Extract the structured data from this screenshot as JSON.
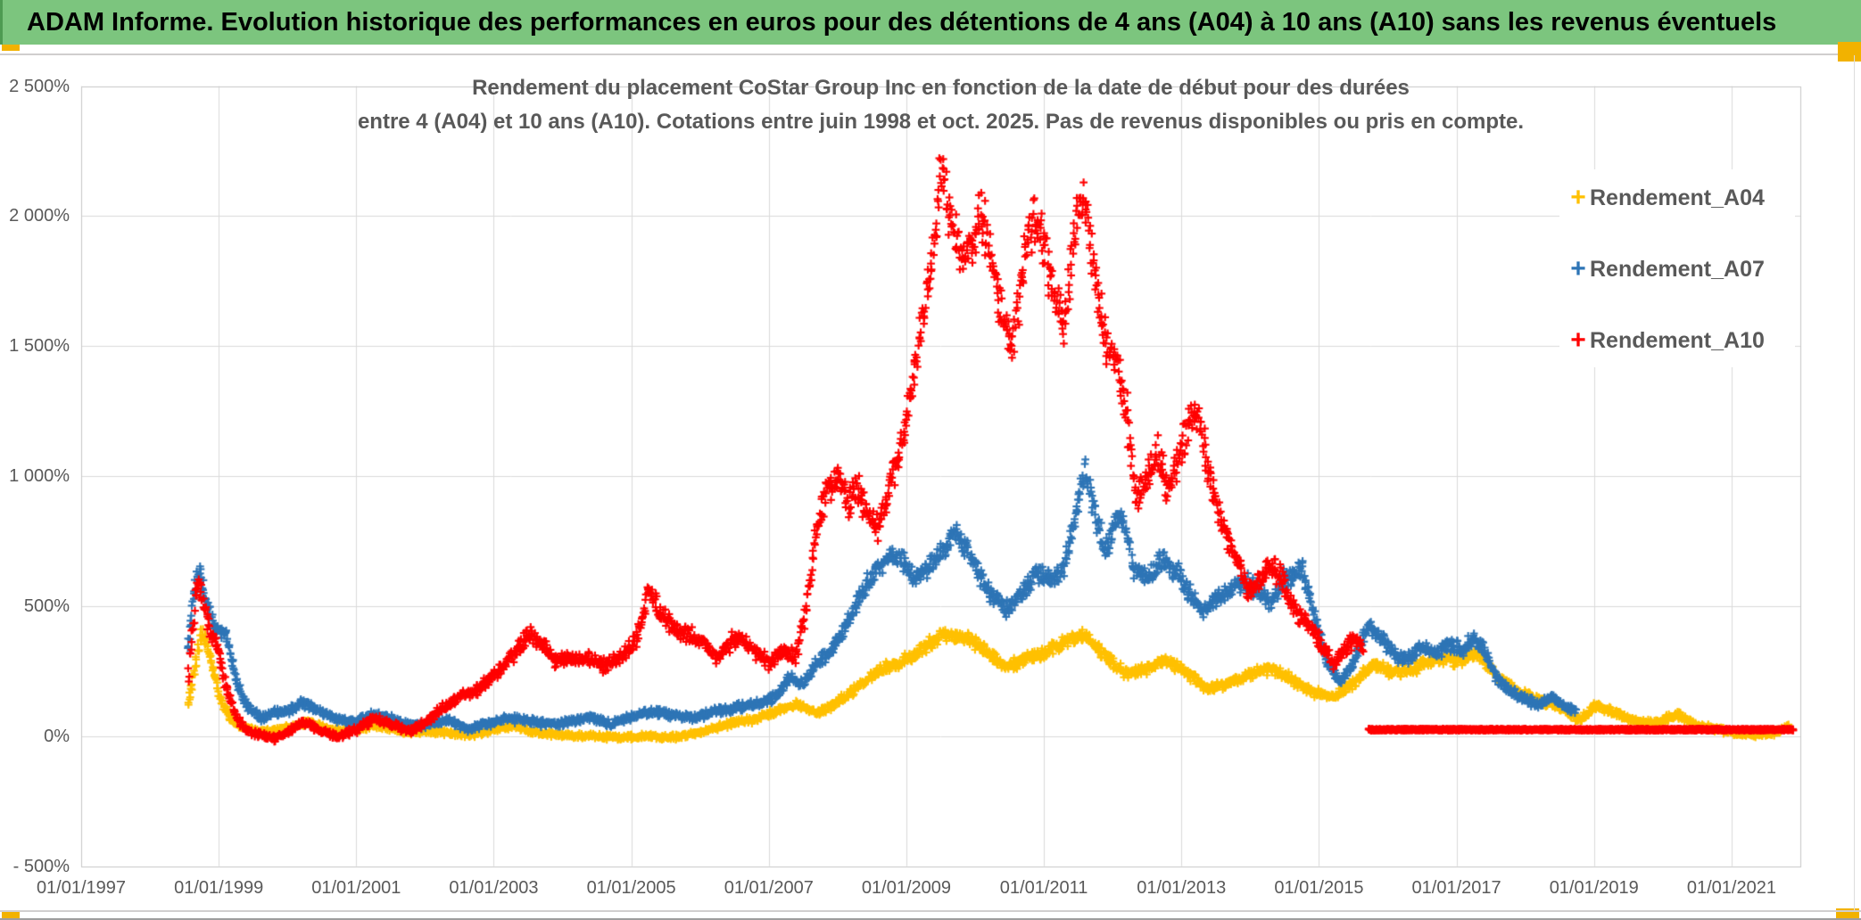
{
  "header": {
    "title": "ADAM Informe. Evolution historique des performances en euros pour des détentions de 4 ans (A04) à 10 ans (A10) sans les revenus éventuels"
  },
  "colors": {
    "header_green": "#7CC57E",
    "header_green_dark": "#4E9B52",
    "accent_yellow": "#F2B200",
    "separator_gray": "#D0CECE",
    "grid_gray": "#DADADA",
    "plot_border_gray": "#C6C6C6",
    "text_gray": "#595959"
  },
  "chart_data": {
    "type": "scatter",
    "title_line1": "Rendement du placement CoStar Group Inc en fonction de la date de début pour des durées",
    "title_line2": "entre 4 (A04) et 10 ans (A10). Cotations entre juin 1998 et oct. 2025. Pas de revenus disponibles ou pris en compte.",
    "legend_position": "right-inside",
    "grid": true,
    "marker": "plus",
    "x_axis": {
      "ticks": [
        "01/01/1997",
        "01/01/1999",
        "01/01/2001",
        "01/01/2003",
        "01/01/2005",
        "01/01/2007",
        "01/01/2009",
        "01/01/2011",
        "01/01/2013",
        "01/01/2015",
        "01/01/2017",
        "01/01/2019",
        "01/01/2021"
      ],
      "range_years": [
        1997,
        2022
      ]
    },
    "y_axis": {
      "ticks": [
        "2 500%",
        "2 000%",
        "1 500%",
        "1 000%",
        "500%",
        "0%",
        "- 500%"
      ],
      "range_pct": [
        -500,
        2500
      ],
      "step_pct": 500
    },
    "series": [
      {
        "name": "Rendement_A04",
        "color": "#FFC000",
        "jitter_base_pct": 12,
        "jitter_prop": 0.05,
        "anchors_year_pct": [
          [
            1998.55,
            120
          ],
          [
            1998.65,
            260
          ],
          [
            1998.75,
            400
          ],
          [
            1998.85,
            330
          ],
          [
            1998.95,
            230
          ],
          [
            1999.05,
            120
          ],
          [
            1999.2,
            60
          ],
          [
            1999.4,
            30
          ],
          [
            1999.6,
            15
          ],
          [
            1999.8,
            25
          ],
          [
            2000,
            30
          ],
          [
            2000.3,
            55
          ],
          [
            2000.6,
            25
          ],
          [
            2000.9,
            15
          ],
          [
            2001.2,
            40
          ],
          [
            2001.5,
            30
          ],
          [
            2001.8,
            15
          ],
          [
            2002.1,
            20
          ],
          [
            2002.4,
            10
          ],
          [
            2002.7,
            5
          ],
          [
            2003,
            25
          ],
          [
            2003.3,
            40
          ],
          [
            2003.6,
            15
          ],
          [
            2004,
            5
          ],
          [
            2004.4,
            0
          ],
          [
            2004.8,
            -5
          ],
          [
            2005.2,
            0
          ],
          [
            2005.6,
            -5
          ],
          [
            2006,
            15
          ],
          [
            2006.4,
            45
          ],
          [
            2006.8,
            65
          ],
          [
            2007.1,
            95
          ],
          [
            2007.4,
            120
          ],
          [
            2007.7,
            90
          ],
          [
            2008,
            130
          ],
          [
            2008.3,
            190
          ],
          [
            2008.6,
            250
          ],
          [
            2008.9,
            280
          ],
          [
            2009.2,
            330
          ],
          [
            2009.5,
            390
          ],
          [
            2009.8,
            380
          ],
          [
            2010,
            360
          ],
          [
            2010.4,
            270
          ],
          [
            2010.7,
            290
          ],
          [
            2011,
            320
          ],
          [
            2011.3,
            370
          ],
          [
            2011.6,
            390
          ],
          [
            2011.9,
            300
          ],
          [
            2012.2,
            240
          ],
          [
            2012.5,
            260
          ],
          [
            2012.8,
            290
          ],
          [
            2013.1,
            240
          ],
          [
            2013.4,
            180
          ],
          [
            2013.7,
            200
          ],
          [
            2014,
            240
          ],
          [
            2014.3,
            260
          ],
          [
            2014.6,
            220
          ],
          [
            2014.9,
            170
          ],
          [
            2015.2,
            150
          ],
          [
            2015.5,
            200
          ],
          [
            2015.8,
            280
          ],
          [
            2016.1,
            240
          ],
          [
            2016.4,
            260
          ],
          [
            2016.7,
            300
          ],
          [
            2017,
            290
          ],
          [
            2017.3,
            320
          ],
          [
            2017.6,
            230
          ],
          [
            2017.9,
            170
          ],
          [
            2018.2,
            140
          ],
          [
            2018.5,
            110
          ],
          [
            2018.8,
            60
          ],
          [
            2019,
            120
          ],
          [
            2019.3,
            90
          ],
          [
            2019.6,
            60
          ],
          [
            2019.9,
            50
          ],
          [
            2020.2,
            85
          ],
          [
            2020.5,
            40
          ],
          [
            2020.8,
            25
          ],
          [
            2021.1,
            10
          ],
          [
            2021.4,
            5
          ],
          [
            2021.6,
            10
          ],
          [
            2021.85,
            40
          ]
        ]
      },
      {
        "name": "Rendement_A07",
        "color": "#2E75B6",
        "jitter_base_pct": 14,
        "jitter_prop": 0.05,
        "anchors_year_pct": [
          [
            1998.55,
            350
          ],
          [
            1998.62,
            500
          ],
          [
            1998.7,
            640
          ],
          [
            1998.78,
            560
          ],
          [
            1998.85,
            480
          ],
          [
            1998.95,
            420
          ],
          [
            1999.1,
            400
          ],
          [
            1999.25,
            220
          ],
          [
            1999.4,
            120
          ],
          [
            1999.6,
            70
          ],
          [
            1999.8,
            90
          ],
          [
            2000,
            95
          ],
          [
            2000.25,
            130
          ],
          [
            2000.5,
            90
          ],
          [
            2000.75,
            60
          ],
          [
            2001,
            55
          ],
          [
            2001.25,
            85
          ],
          [
            2001.5,
            70
          ],
          [
            2001.75,
            45
          ],
          [
            2002,
            40
          ],
          [
            2002.3,
            65
          ],
          [
            2002.6,
            30
          ],
          [
            2002.9,
            45
          ],
          [
            2003.2,
            70
          ],
          [
            2003.5,
            60
          ],
          [
            2003.8,
            45
          ],
          [
            2004.1,
            55
          ],
          [
            2004.4,
            75
          ],
          [
            2004.7,
            45
          ],
          [
            2005,
            75
          ],
          [
            2005.3,
            95
          ],
          [
            2005.6,
            80
          ],
          [
            2005.9,
            70
          ],
          [
            2006.2,
            95
          ],
          [
            2006.5,
            110
          ],
          [
            2006.8,
            120
          ],
          [
            2007.1,
            150
          ],
          [
            2007.3,
            220
          ],
          [
            2007.5,
            200
          ],
          [
            2007.7,
            280
          ],
          [
            2007.9,
            330
          ],
          [
            2008.1,
            420
          ],
          [
            2008.3,
            520
          ],
          [
            2008.5,
            620
          ],
          [
            2008.7,
            680
          ],
          [
            2008.9,
            700
          ],
          [
            2009.1,
            600
          ],
          [
            2009.3,
            640
          ],
          [
            2009.5,
            700
          ],
          [
            2009.7,
            790
          ],
          [
            2009.9,
            720
          ],
          [
            2010.1,
            600
          ],
          [
            2010.3,
            520
          ],
          [
            2010.5,
            480
          ],
          [
            2010.7,
            560
          ],
          [
            2010.9,
            620
          ],
          [
            2011.1,
            600
          ],
          [
            2011.3,
            650
          ],
          [
            2011.5,
            900
          ],
          [
            2011.6,
            1030
          ],
          [
            2011.75,
            850
          ],
          [
            2011.9,
            700
          ],
          [
            2012.1,
            880
          ],
          [
            2012.3,
            650
          ],
          [
            2012.5,
            600
          ],
          [
            2012.7,
            680
          ],
          [
            2012.9,
            640
          ],
          [
            2013.1,
            560
          ],
          [
            2013.3,
            480
          ],
          [
            2013.5,
            520
          ],
          [
            2013.7,
            560
          ],
          [
            2013.9,
            600
          ],
          [
            2014.1,
            560
          ],
          [
            2014.3,
            520
          ],
          [
            2014.5,
            600
          ],
          [
            2014.75,
            640
          ],
          [
            2014.9,
            500
          ],
          [
            2015.1,
            300
          ],
          [
            2015.3,
            200
          ],
          [
            2015.5,
            280
          ],
          [
            2015.7,
            420
          ],
          [
            2015.9,
            380
          ],
          [
            2016.1,
            310
          ],
          [
            2016.3,
            300
          ],
          [
            2016.5,
            340
          ],
          [
            2016.7,
            320
          ],
          [
            2016.9,
            350
          ],
          [
            2017.1,
            330
          ],
          [
            2017.25,
            380
          ],
          [
            2017.4,
            330
          ],
          [
            2017.6,
            220
          ],
          [
            2017.8,
            170
          ],
          [
            2018,
            140
          ],
          [
            2018.2,
            120
          ],
          [
            2018.4,
            150
          ],
          [
            2018.6,
            110
          ],
          [
            2018.75,
            95
          ]
        ]
      },
      {
        "name": "Rendement_A10",
        "color": "#FF0000",
        "jitter_base_pct": 16,
        "jitter_prop": 0.055,
        "anchors_year_pct": [
          [
            1998.55,
            220
          ],
          [
            1998.62,
            420
          ],
          [
            1998.7,
            600
          ],
          [
            1998.78,
            520
          ],
          [
            1998.88,
            400
          ],
          [
            1999,
            330
          ],
          [
            1999.1,
            200
          ],
          [
            1999.25,
            80
          ],
          [
            1999.4,
            20
          ],
          [
            1999.6,
            5
          ],
          [
            1999.8,
            -10
          ],
          [
            2000,
            15
          ],
          [
            2000.25,
            55
          ],
          [
            2000.5,
            15
          ],
          [
            2000.75,
            0
          ],
          [
            2001,
            25
          ],
          [
            2001.25,
            70
          ],
          [
            2001.5,
            45
          ],
          [
            2001.75,
            20
          ],
          [
            2002,
            50
          ],
          [
            2002.25,
            110
          ],
          [
            2002.5,
            150
          ],
          [
            2002.75,
            180
          ],
          [
            2003,
            230
          ],
          [
            2003.25,
            300
          ],
          [
            2003.5,
            390
          ],
          [
            2003.7,
            360
          ],
          [
            2003.9,
            280
          ],
          [
            2004.1,
            300
          ],
          [
            2004.35,
            300
          ],
          [
            2004.6,
            270
          ],
          [
            2004.85,
            300
          ],
          [
            2005.1,
            380
          ],
          [
            2005.25,
            560
          ],
          [
            2005.4,
            480
          ],
          [
            2005.6,
            420
          ],
          [
            2006,
            370
          ],
          [
            2006.25,
            300
          ],
          [
            2006.5,
            380
          ],
          [
            2006.75,
            340
          ],
          [
            2007,
            280
          ],
          [
            2007.2,
            330
          ],
          [
            2007.4,
            300
          ],
          [
            2007.55,
            500
          ],
          [
            2007.7,
            800
          ],
          [
            2007.85,
            950
          ],
          [
            2008,
            1000
          ],
          [
            2008.15,
            900
          ],
          [
            2008.3,
            950
          ],
          [
            2008.45,
            850
          ],
          [
            2008.6,
            800
          ],
          [
            2008.75,
            950
          ],
          [
            2008.9,
            1100
          ],
          [
            2009.05,
            1300
          ],
          [
            2009.2,
            1550
          ],
          [
            2009.35,
            1800
          ],
          [
            2009.5,
            2150
          ],
          [
            2009.65,
            2000
          ],
          [
            2009.8,
            1850
          ],
          [
            2009.95,
            1900
          ],
          [
            2010.1,
            2000
          ],
          [
            2010.25,
            1800
          ],
          [
            2010.4,
            1600
          ],
          [
            2010.55,
            1500
          ],
          [
            2010.7,
            1800
          ],
          [
            2010.85,
            2000
          ],
          [
            2011,
            1900
          ],
          [
            2011.15,
            1700
          ],
          [
            2011.3,
            1550
          ],
          [
            2011.45,
            1950
          ],
          [
            2011.6,
            2050
          ],
          [
            2011.75,
            1750
          ],
          [
            2011.9,
            1500
          ],
          [
            2012.05,
            1450
          ],
          [
            2012.2,
            1250
          ],
          [
            2012.35,
            900
          ],
          [
            2012.5,
            1000
          ],
          [
            2012.65,
            1100
          ],
          [
            2012.8,
            950
          ],
          [
            2012.95,
            1050
          ],
          [
            2013.1,
            1200
          ],
          [
            2013.25,
            1230
          ],
          [
            2013.4,
            1000
          ],
          [
            2013.55,
            850
          ],
          [
            2013.7,
            750
          ],
          [
            2013.85,
            650
          ],
          [
            2014,
            550
          ],
          [
            2014.15,
            600
          ],
          [
            2014.3,
            650
          ],
          [
            2014.45,
            620
          ],
          [
            2014.6,
            500
          ],
          [
            2014.75,
            450
          ],
          [
            2014.9,
            420
          ],
          [
            2015.05,
            350
          ],
          [
            2015.2,
            280
          ],
          [
            2015.35,
            320
          ],
          [
            2015.5,
            380
          ],
          [
            2015.65,
            330
          ]
        ],
        "flat_tail": {
          "from_year": 2015.72,
          "to_year": 2021.9,
          "value_pct": 25,
          "jitter_pct": 4
        }
      }
    ]
  }
}
